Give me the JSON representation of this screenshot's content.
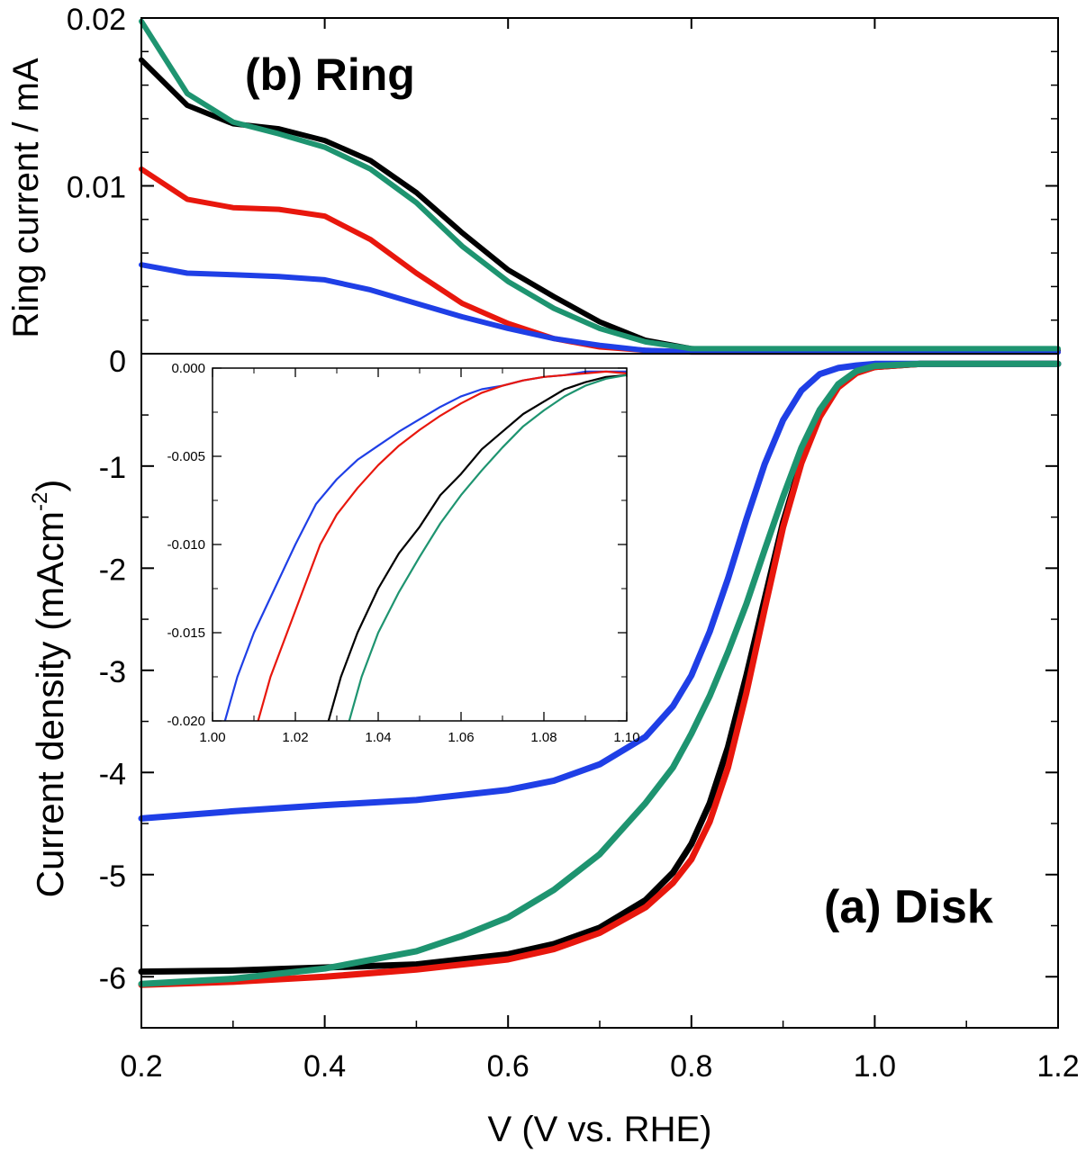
{
  "chart_data": [
    {
      "id": "ring",
      "type": "line",
      "annotation": "(b) Ring",
      "ylabel": "Ring current / mA",
      "xlim": [
        0.2,
        1.2
      ],
      "ylim": [
        0,
        0.02
      ],
      "yticks": [
        0,
        0.01,
        0.02
      ],
      "ytick_labels": [
        "0",
        "0.01",
        "0.02"
      ],
      "grid": false,
      "series": [
        {
          "color": "#000000",
          "x": [
            0.2,
            0.25,
            0.3,
            0.35,
            0.4,
            0.45,
            0.5,
            0.55,
            0.6,
            0.65,
            0.7,
            0.75,
            0.8,
            0.85,
            1.0,
            1.2
          ],
          "y": [
            0.0175,
            0.0148,
            0.0137,
            0.0134,
            0.0127,
            0.0115,
            0.0096,
            0.0072,
            0.005,
            0.0034,
            0.0019,
            0.0008,
            0.0003,
            0.0002,
            0.0002,
            0.0002
          ]
        },
        {
          "color": "#e8170d",
          "x": [
            0.2,
            0.25,
            0.3,
            0.35,
            0.4,
            0.45,
            0.5,
            0.55,
            0.6,
            0.65,
            0.7,
            0.75,
            0.8,
            1.0,
            1.2
          ],
          "y": [
            0.011,
            0.0092,
            0.0087,
            0.0086,
            0.0082,
            0.0068,
            0.0048,
            0.003,
            0.0018,
            0.0009,
            0.0004,
            0.0002,
            0.0001,
            0.0001,
            0.0001
          ]
        },
        {
          "color": "#1f3fe6",
          "x": [
            0.2,
            0.25,
            0.3,
            0.35,
            0.4,
            0.45,
            0.5,
            0.55,
            0.6,
            0.65,
            0.7,
            0.75,
            0.8,
            1.0,
            1.2
          ],
          "y": [
            0.0053,
            0.0048,
            0.0047,
            0.0046,
            0.0044,
            0.0038,
            0.003,
            0.0022,
            0.0015,
            0.0009,
            0.0005,
            0.0002,
            0.0001,
            0.0001,
            0.0001
          ]
        },
        {
          "color": "#1e9470",
          "x": [
            0.2,
            0.25,
            0.3,
            0.35,
            0.4,
            0.45,
            0.5,
            0.55,
            0.6,
            0.65,
            0.7,
            0.75,
            0.8,
            0.85,
            1.0,
            1.2
          ],
          "y": [
            0.0198,
            0.0155,
            0.0138,
            0.0131,
            0.0123,
            0.011,
            0.009,
            0.0064,
            0.0043,
            0.0027,
            0.0015,
            0.0007,
            0.0003,
            0.0003,
            0.0003,
            0.0003
          ]
        }
      ]
    },
    {
      "id": "disk",
      "type": "line",
      "annotation": "(a) Disk",
      "xlabel": "V (V vs. RHE)",
      "ylabel": "Current density (mAcm",
      "ylabel_sup": "-2",
      "ylabel_end": ")",
      "xlim": [
        0.2,
        1.2
      ],
      "ylim": [
        -6.5,
        0.1
      ],
      "xticks": [
        0.2,
        0.4,
        0.6,
        0.8,
        1.0,
        1.2
      ],
      "xtick_labels": [
        "0.2",
        "0.4",
        "0.6",
        "0.8",
        "1.0",
        "1.2"
      ],
      "yticks": [
        0,
        -1,
        -2,
        -3,
        -4,
        -5,
        -6
      ],
      "ytick_labels": [
        "0",
        "-1",
        "-2",
        "-3",
        "-4",
        "-5",
        "-6"
      ],
      "grid": false,
      "series": [
        {
          "color": "#000000",
          "x": [
            0.2,
            0.3,
            0.4,
            0.5,
            0.6,
            0.65,
            0.7,
            0.75,
            0.78,
            0.8,
            0.82,
            0.84,
            0.86,
            0.88,
            0.9,
            0.92,
            0.94,
            0.96,
            0.98,
            1.0,
            1.05,
            1.2
          ],
          "y": [
            -5.95,
            -5.94,
            -5.91,
            -5.88,
            -5.78,
            -5.68,
            -5.52,
            -5.25,
            -4.98,
            -4.7,
            -4.3,
            -3.75,
            -3.05,
            -2.3,
            -1.55,
            -0.95,
            -0.5,
            -0.22,
            -0.08,
            -0.03,
            0,
            0
          ]
        },
        {
          "color": "#e8170d",
          "x": [
            0.2,
            0.3,
            0.4,
            0.5,
            0.6,
            0.65,
            0.7,
            0.75,
            0.78,
            0.8,
            0.82,
            0.84,
            0.86,
            0.88,
            0.9,
            0.92,
            0.94,
            0.96,
            0.98,
            1.0,
            1.05,
            1.2
          ],
          "y": [
            -6.08,
            -6.05,
            -6.0,
            -5.93,
            -5.83,
            -5.73,
            -5.57,
            -5.32,
            -5.08,
            -4.85,
            -4.48,
            -3.95,
            -3.22,
            -2.4,
            -1.6,
            -0.97,
            -0.52,
            -0.23,
            -0.09,
            -0.03,
            0,
            0
          ]
        },
        {
          "color": "#1f3fe6",
          "x": [
            0.2,
            0.3,
            0.4,
            0.5,
            0.6,
            0.65,
            0.7,
            0.75,
            0.78,
            0.8,
            0.82,
            0.84,
            0.86,
            0.88,
            0.9,
            0.92,
            0.94,
            0.96,
            0.98,
            1.0,
            1.05,
            1.2
          ],
          "y": [
            -4.45,
            -4.38,
            -4.32,
            -4.27,
            -4.17,
            -4.08,
            -3.92,
            -3.65,
            -3.35,
            -3.05,
            -2.62,
            -2.1,
            -1.52,
            -0.98,
            -0.55,
            -0.26,
            -0.1,
            -0.04,
            -0.015,
            0,
            0,
            0
          ]
        },
        {
          "color": "#1e9470",
          "x": [
            0.2,
            0.3,
            0.4,
            0.5,
            0.55,
            0.6,
            0.65,
            0.7,
            0.75,
            0.78,
            0.8,
            0.82,
            0.84,
            0.86,
            0.88,
            0.9,
            0.92,
            0.94,
            0.96,
            0.98,
            1.0,
            1.05,
            1.2
          ],
          "y": [
            -6.07,
            -6.02,
            -5.92,
            -5.75,
            -5.6,
            -5.42,
            -5.15,
            -4.8,
            -4.3,
            -3.95,
            -3.62,
            -3.25,
            -2.82,
            -2.35,
            -1.82,
            -1.3,
            -0.82,
            -0.45,
            -0.2,
            -0.07,
            -0.02,
            0,
            0
          ]
        }
      ]
    },
    {
      "id": "inset",
      "type": "line",
      "xlim": [
        1.0,
        1.1
      ],
      "ylim": [
        -0.02,
        0
      ],
      "xticks": [
        1.0,
        1.02,
        1.04,
        1.06,
        1.08,
        1.1
      ],
      "xtick_labels": [
        "1.00",
        "1.02",
        "1.04",
        "1.06",
        "1.08",
        "1.10"
      ],
      "yticks": [
        0,
        -0.005,
        -0.01,
        -0.015,
        -0.02
      ],
      "ytick_labels": [
        "0.000",
        "-0.005",
        "-0.010",
        "-0.015",
        "-0.020"
      ],
      "grid": false,
      "series": [
        {
          "color": "#1f3fe6",
          "x": [
            1.003,
            1.006,
            1.01,
            1.015,
            1.02,
            1.025,
            1.03,
            1.035,
            1.04,
            1.045,
            1.05,
            1.055,
            1.06,
            1.065,
            1.07,
            1.075,
            1.08,
            1.085,
            1.09,
            1.1
          ],
          "y": [
            -0.02,
            -0.0175,
            -0.015,
            -0.0125,
            -0.01,
            -0.0077,
            -0.0063,
            -0.0052,
            -0.0044,
            -0.0036,
            -0.0029,
            -0.0022,
            -0.0016,
            -0.0012,
            -0.001,
            -0.0007,
            -0.0005,
            -0.0004,
            -0.0002,
            -0.0002
          ]
        },
        {
          "color": "#e8170d",
          "x": [
            1.011,
            1.014,
            1.018,
            1.022,
            1.026,
            1.03,
            1.035,
            1.04,
            1.045,
            1.05,
            1.055,
            1.06,
            1.065,
            1.07,
            1.075,
            1.08,
            1.085,
            1.09,
            1.095,
            1.1
          ],
          "y": [
            -0.02,
            -0.0175,
            -0.015,
            -0.0125,
            -0.01,
            -0.0083,
            -0.0068,
            -0.0055,
            -0.0044,
            -0.0035,
            -0.0027,
            -0.002,
            -0.0014,
            -0.001,
            -0.0007,
            -0.0005,
            -0.0004,
            -0.0003,
            -0.0002,
            -0.0003
          ]
        },
        {
          "color": "#000000",
          "x": [
            1.028,
            1.031,
            1.035,
            1.04,
            1.045,
            1.05,
            1.055,
            1.06,
            1.065,
            1.07,
            1.075,
            1.08,
            1.085,
            1.09,
            1.095,
            1.1
          ],
          "y": [
            -0.02,
            -0.0175,
            -0.015,
            -0.0125,
            -0.0105,
            -0.009,
            -0.0072,
            -0.006,
            -0.0046,
            -0.0036,
            -0.0026,
            -0.0019,
            -0.0012,
            -0.0008,
            -0.0005,
            -0.0004
          ]
        },
        {
          "color": "#1e9470",
          "x": [
            1.033,
            1.036,
            1.04,
            1.045,
            1.05,
            1.055,
            1.06,
            1.065,
            1.07,
            1.075,
            1.08,
            1.085,
            1.09,
            1.095,
            1.1
          ],
          "y": [
            -0.02,
            -0.0175,
            -0.015,
            -0.0127,
            -0.0107,
            -0.0088,
            -0.0072,
            -0.0058,
            -0.0045,
            -0.0033,
            -0.0024,
            -0.0016,
            -0.001,
            -0.0006,
            -0.0004
          ]
        }
      ]
    }
  ]
}
